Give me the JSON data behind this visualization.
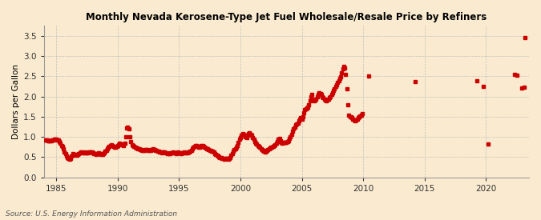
{
  "title": "Monthly Nevada Kerosene-Type Jet Fuel Wholesale/Resale Price by Refiners",
  "ylabel": "Dollars per Gallon",
  "source": "Source: U.S. Energy Information Administration",
  "xlim": [
    1984.0,
    2023.5
  ],
  "ylim": [
    0.0,
    3.75
  ],
  "yticks": [
    0.0,
    0.5,
    1.0,
    1.5,
    2.0,
    2.5,
    3.0,
    3.5
  ],
  "xticks": [
    1985,
    1990,
    1995,
    2000,
    2005,
    2010,
    2015,
    2020
  ],
  "dot_color": "#cc0000",
  "background_color": "#faebd0",
  "grid_color": "#bbbbbb",
  "data": [
    [
      1984.08,
      0.93
    ],
    [
      1984.17,
      0.93
    ],
    [
      1984.25,
      0.92
    ],
    [
      1984.33,
      0.91
    ],
    [
      1984.42,
      0.91
    ],
    [
      1984.5,
      0.91
    ],
    [
      1984.58,
      0.91
    ],
    [
      1984.67,
      0.92
    ],
    [
      1984.75,
      0.93
    ],
    [
      1984.83,
      0.94
    ],
    [
      1984.92,
      0.94
    ],
    [
      1985.0,
      0.94
    ],
    [
      1985.08,
      0.93
    ],
    [
      1985.17,
      0.92
    ],
    [
      1985.25,
      0.88
    ],
    [
      1985.33,
      0.84
    ],
    [
      1985.42,
      0.79
    ],
    [
      1985.5,
      0.76
    ],
    [
      1985.58,
      0.7
    ],
    [
      1985.67,
      0.63
    ],
    [
      1985.75,
      0.58
    ],
    [
      1985.83,
      0.53
    ],
    [
      1985.92,
      0.49
    ],
    [
      1986.0,
      0.46
    ],
    [
      1986.08,
      0.44
    ],
    [
      1986.17,
      0.47
    ],
    [
      1986.25,
      0.53
    ],
    [
      1986.33,
      0.58
    ],
    [
      1986.42,
      0.57
    ],
    [
      1986.5,
      0.56
    ],
    [
      1986.58,
      0.55
    ],
    [
      1986.67,
      0.54
    ],
    [
      1986.75,
      0.56
    ],
    [
      1986.83,
      0.58
    ],
    [
      1986.92,
      0.61
    ],
    [
      1987.0,
      0.63
    ],
    [
      1987.08,
      0.62
    ],
    [
      1987.17,
      0.61
    ],
    [
      1987.25,
      0.6
    ],
    [
      1987.33,
      0.62
    ],
    [
      1987.42,
      0.61
    ],
    [
      1987.5,
      0.6
    ],
    [
      1987.58,
      0.6
    ],
    [
      1987.67,
      0.62
    ],
    [
      1987.75,
      0.63
    ],
    [
      1987.83,
      0.63
    ],
    [
      1987.92,
      0.62
    ],
    [
      1988.0,
      0.61
    ],
    [
      1988.08,
      0.59
    ],
    [
      1988.17,
      0.58
    ],
    [
      1988.25,
      0.57
    ],
    [
      1988.33,
      0.59
    ],
    [
      1988.42,
      0.6
    ],
    [
      1988.5,
      0.59
    ],
    [
      1988.58,
      0.58
    ],
    [
      1988.67,
      0.57
    ],
    [
      1988.75,
      0.56
    ],
    [
      1988.83,
      0.58
    ],
    [
      1988.92,
      0.61
    ],
    [
      1989.0,
      0.64
    ],
    [
      1989.08,
      0.67
    ],
    [
      1989.17,
      0.7
    ],
    [
      1989.25,
      0.74
    ],
    [
      1989.33,
      0.77
    ],
    [
      1989.42,
      0.79
    ],
    [
      1989.5,
      0.81
    ],
    [
      1989.58,
      0.79
    ],
    [
      1989.67,
      0.77
    ],
    [
      1989.75,
      0.75
    ],
    [
      1989.83,
      0.74
    ],
    [
      1989.92,
      0.76
    ],
    [
      1990.0,
      0.79
    ],
    [
      1990.08,
      0.81
    ],
    [
      1990.17,
      0.84
    ],
    [
      1990.25,
      0.83
    ],
    [
      1990.33,
      0.82
    ],
    [
      1990.42,
      0.81
    ],
    [
      1990.5,
      0.79
    ],
    [
      1990.58,
      0.84
    ],
    [
      1990.67,
      1.01
    ],
    [
      1990.75,
      1.21
    ],
    [
      1990.83,
      1.23
    ],
    [
      1990.92,
      1.19
    ],
    [
      1991.0,
      1.01
    ],
    [
      1991.08,
      0.89
    ],
    [
      1991.17,
      0.81
    ],
    [
      1991.25,
      0.79
    ],
    [
      1991.33,
      0.77
    ],
    [
      1991.42,
      0.75
    ],
    [
      1991.5,
      0.73
    ],
    [
      1991.58,
      0.72
    ],
    [
      1991.67,
      0.71
    ],
    [
      1991.75,
      0.7
    ],
    [
      1991.83,
      0.69
    ],
    [
      1991.92,
      0.68
    ],
    [
      1992.0,
      0.67
    ],
    [
      1992.08,
      0.66
    ],
    [
      1992.17,
      0.67
    ],
    [
      1992.25,
      0.68
    ],
    [
      1992.33,
      0.69
    ],
    [
      1992.42,
      0.68
    ],
    [
      1992.5,
      0.67
    ],
    [
      1992.58,
      0.66
    ],
    [
      1992.67,
      0.67
    ],
    [
      1992.75,
      0.68
    ],
    [
      1992.83,
      0.69
    ],
    [
      1992.92,
      0.7
    ],
    [
      1993.0,
      0.69
    ],
    [
      1993.08,
      0.67
    ],
    [
      1993.17,
      0.66
    ],
    [
      1993.25,
      0.65
    ],
    [
      1993.33,
      0.64
    ],
    [
      1993.42,
      0.63
    ],
    [
      1993.5,
      0.62
    ],
    [
      1993.58,
      0.61
    ],
    [
      1993.67,
      0.62
    ],
    [
      1993.75,
      0.63
    ],
    [
      1993.83,
      0.62
    ],
    [
      1993.92,
      0.61
    ],
    [
      1994.0,
      0.6
    ],
    [
      1994.08,
      0.59
    ],
    [
      1994.17,
      0.58
    ],
    [
      1994.25,
      0.59
    ],
    [
      1994.33,
      0.6
    ],
    [
      1994.42,
      0.61
    ],
    [
      1994.5,
      0.62
    ],
    [
      1994.58,
      0.61
    ],
    [
      1994.67,
      0.6
    ],
    [
      1994.75,
      0.59
    ],
    [
      1994.83,
      0.61
    ],
    [
      1994.92,
      0.62
    ],
    [
      1995.0,
      0.61
    ],
    [
      1995.08,
      0.6
    ],
    [
      1995.17,
      0.59
    ],
    [
      1995.25,
      0.6
    ],
    [
      1995.33,
      0.61
    ],
    [
      1995.42,
      0.62
    ],
    [
      1995.5,
      0.61
    ],
    [
      1995.58,
      0.6
    ],
    [
      1995.67,
      0.61
    ],
    [
      1995.75,
      0.62
    ],
    [
      1995.83,
      0.63
    ],
    [
      1995.92,
      0.64
    ],
    [
      1996.0,
      0.67
    ],
    [
      1996.08,
      0.71
    ],
    [
      1996.17,
      0.74
    ],
    [
      1996.25,
      0.77
    ],
    [
      1996.33,
      0.79
    ],
    [
      1996.42,
      0.78
    ],
    [
      1996.5,
      0.76
    ],
    [
      1996.58,
      0.75
    ],
    [
      1996.67,
      0.74
    ],
    [
      1996.75,
      0.76
    ],
    [
      1996.83,
      0.78
    ],
    [
      1996.92,
      0.79
    ],
    [
      1997.0,
      0.77
    ],
    [
      1997.08,
      0.75
    ],
    [
      1997.17,
      0.73
    ],
    [
      1997.25,
      0.71
    ],
    [
      1997.33,
      0.7
    ],
    [
      1997.42,
      0.69
    ],
    [
      1997.5,
      0.67
    ],
    [
      1997.58,
      0.66
    ],
    [
      1997.67,
      0.65
    ],
    [
      1997.75,
      0.64
    ],
    [
      1997.83,
      0.62
    ],
    [
      1997.92,
      0.59
    ],
    [
      1998.0,
      0.56
    ],
    [
      1998.08,
      0.54
    ],
    [
      1998.17,
      0.52
    ],
    [
      1998.25,
      0.5
    ],
    [
      1998.33,
      0.49
    ],
    [
      1998.42,
      0.48
    ],
    [
      1998.5,
      0.47
    ],
    [
      1998.58,
      0.46
    ],
    [
      1998.67,
      0.45
    ],
    [
      1998.75,
      0.46
    ],
    [
      1998.83,
      0.47
    ],
    [
      1998.92,
      0.46
    ],
    [
      1999.0,
      0.45
    ],
    [
      1999.08,
      0.46
    ],
    [
      1999.17,
      0.49
    ],
    [
      1999.25,
      0.54
    ],
    [
      1999.33,
      0.59
    ],
    [
      1999.42,
      0.64
    ],
    [
      1999.5,
      0.69
    ],
    [
      1999.58,
      0.71
    ],
    [
      1999.67,
      0.74
    ],
    [
      1999.75,
      0.79
    ],
    [
      1999.83,
      0.87
    ],
    [
      1999.92,
      0.94
    ],
    [
      2000.0,
      0.99
    ],
    [
      2000.08,
      1.04
    ],
    [
      2000.17,
      1.09
    ],
    [
      2000.25,
      1.07
    ],
    [
      2000.33,
      1.04
    ],
    [
      2000.42,
      1.01
    ],
    [
      2000.5,
      0.99
    ],
    [
      2000.58,
      1.04
    ],
    [
      2000.67,
      1.09
    ],
    [
      2000.75,
      1.11
    ],
    [
      2000.83,
      1.07
    ],
    [
      2000.92,
      1.04
    ],
    [
      2001.0,
      0.99
    ],
    [
      2001.08,
      0.94
    ],
    [
      2001.17,
      0.89
    ],
    [
      2001.25,
      0.84
    ],
    [
      2001.33,
      0.82
    ],
    [
      2001.42,
      0.79
    ],
    [
      2001.5,
      0.77
    ],
    [
      2001.58,
      0.74
    ],
    [
      2001.67,
      0.71
    ],
    [
      2001.75,
      0.69
    ],
    [
      2001.83,
      0.67
    ],
    [
      2001.92,
      0.64
    ],
    [
      2002.0,
      0.62
    ],
    [
      2002.08,
      0.64
    ],
    [
      2002.17,
      0.67
    ],
    [
      2002.25,
      0.69
    ],
    [
      2002.33,
      0.71
    ],
    [
      2002.42,
      0.72
    ],
    [
      2002.5,
      0.74
    ],
    [
      2002.58,
      0.75
    ],
    [
      2002.67,
      0.77
    ],
    [
      2002.75,
      0.79
    ],
    [
      2002.83,
      0.81
    ],
    [
      2002.92,
      0.84
    ],
    [
      2003.0,
      0.89
    ],
    [
      2003.08,
      0.94
    ],
    [
      2003.17,
      0.97
    ],
    [
      2003.25,
      0.91
    ],
    [
      2003.33,
      0.87
    ],
    [
      2003.42,
      0.84
    ],
    [
      2003.5,
      0.86
    ],
    [
      2003.58,
      0.87
    ],
    [
      2003.67,
      0.86
    ],
    [
      2003.75,
      0.87
    ],
    [
      2003.83,
      0.89
    ],
    [
      2003.92,
      0.91
    ],
    [
      2004.0,
      0.96
    ],
    [
      2004.08,
      1.01
    ],
    [
      2004.17,
      1.07
    ],
    [
      2004.25,
      1.14
    ],
    [
      2004.33,
      1.19
    ],
    [
      2004.42,
      1.24
    ],
    [
      2004.5,
      1.29
    ],
    [
      2004.58,
      1.31
    ],
    [
      2004.67,
      1.34
    ],
    [
      2004.75,
      1.39
    ],
    [
      2004.83,
      1.44
    ],
    [
      2004.92,
      1.47
    ],
    [
      2005.0,
      1.44
    ],
    [
      2005.08,
      1.49
    ],
    [
      2005.17,
      1.59
    ],
    [
      2005.25,
      1.67
    ],
    [
      2005.33,
      1.69
    ],
    [
      2005.42,
      1.71
    ],
    [
      2005.5,
      1.74
    ],
    [
      2005.58,
      1.79
    ],
    [
      2005.67,
      1.89
    ],
    [
      2005.75,
      1.99
    ],
    [
      2005.83,
      2.04
    ],
    [
      2005.92,
      1.94
    ],
    [
      2006.0,
      1.89
    ],
    [
      2006.08,
      1.91
    ],
    [
      2006.17,
      1.94
    ],
    [
      2006.25,
      1.99
    ],
    [
      2006.33,
      2.04
    ],
    [
      2006.42,
      2.09
    ],
    [
      2006.5,
      2.07
    ],
    [
      2006.58,
      2.04
    ],
    [
      2006.67,
      1.99
    ],
    [
      2006.75,
      1.97
    ],
    [
      2006.83,
      1.94
    ],
    [
      2006.92,
      1.91
    ],
    [
      2007.0,
      1.89
    ],
    [
      2007.08,
      1.91
    ],
    [
      2007.17,
      1.94
    ],
    [
      2007.25,
      1.97
    ],
    [
      2007.33,
      1.99
    ],
    [
      2007.42,
      2.04
    ],
    [
      2007.5,
      2.09
    ],
    [
      2007.58,
      2.14
    ],
    [
      2007.67,
      2.19
    ],
    [
      2007.75,
      2.24
    ],
    [
      2007.83,
      2.29
    ],
    [
      2007.92,
      2.34
    ],
    [
      2008.0,
      2.39
    ],
    [
      2008.08,
      2.44
    ],
    [
      2008.17,
      2.49
    ],
    [
      2008.25,
      2.59
    ],
    [
      2008.33,
      2.69
    ],
    [
      2008.42,
      2.74
    ],
    [
      2008.5,
      2.71
    ],
    [
      2008.58,
      2.54
    ],
    [
      2008.67,
      2.19
    ],
    [
      2008.75,
      1.79
    ],
    [
      2008.83,
      1.54
    ],
    [
      2008.92,
      1.49
    ],
    [
      2009.0,
      1.49
    ],
    [
      2009.08,
      1.47
    ],
    [
      2009.17,
      1.44
    ],
    [
      2009.25,
      1.41
    ],
    [
      2009.33,
      1.39
    ],
    [
      2009.42,
      1.41
    ],
    [
      2009.5,
      1.44
    ],
    [
      2009.58,
      1.47
    ],
    [
      2009.67,
      1.49
    ],
    [
      2009.75,
      1.51
    ],
    [
      2009.83,
      1.54
    ],
    [
      2009.92,
      1.57
    ],
    [
      2010.42,
      2.51
    ],
    [
      2014.25,
      2.37
    ],
    [
      2019.25,
      2.39
    ],
    [
      2019.75,
      2.25
    ],
    [
      2020.17,
      0.82
    ],
    [
      2022.33,
      2.54
    ],
    [
      2022.5,
      2.53
    ],
    [
      2022.92,
      2.2
    ],
    [
      2023.08,
      2.22
    ],
    [
      2023.17,
      3.45
    ]
  ]
}
